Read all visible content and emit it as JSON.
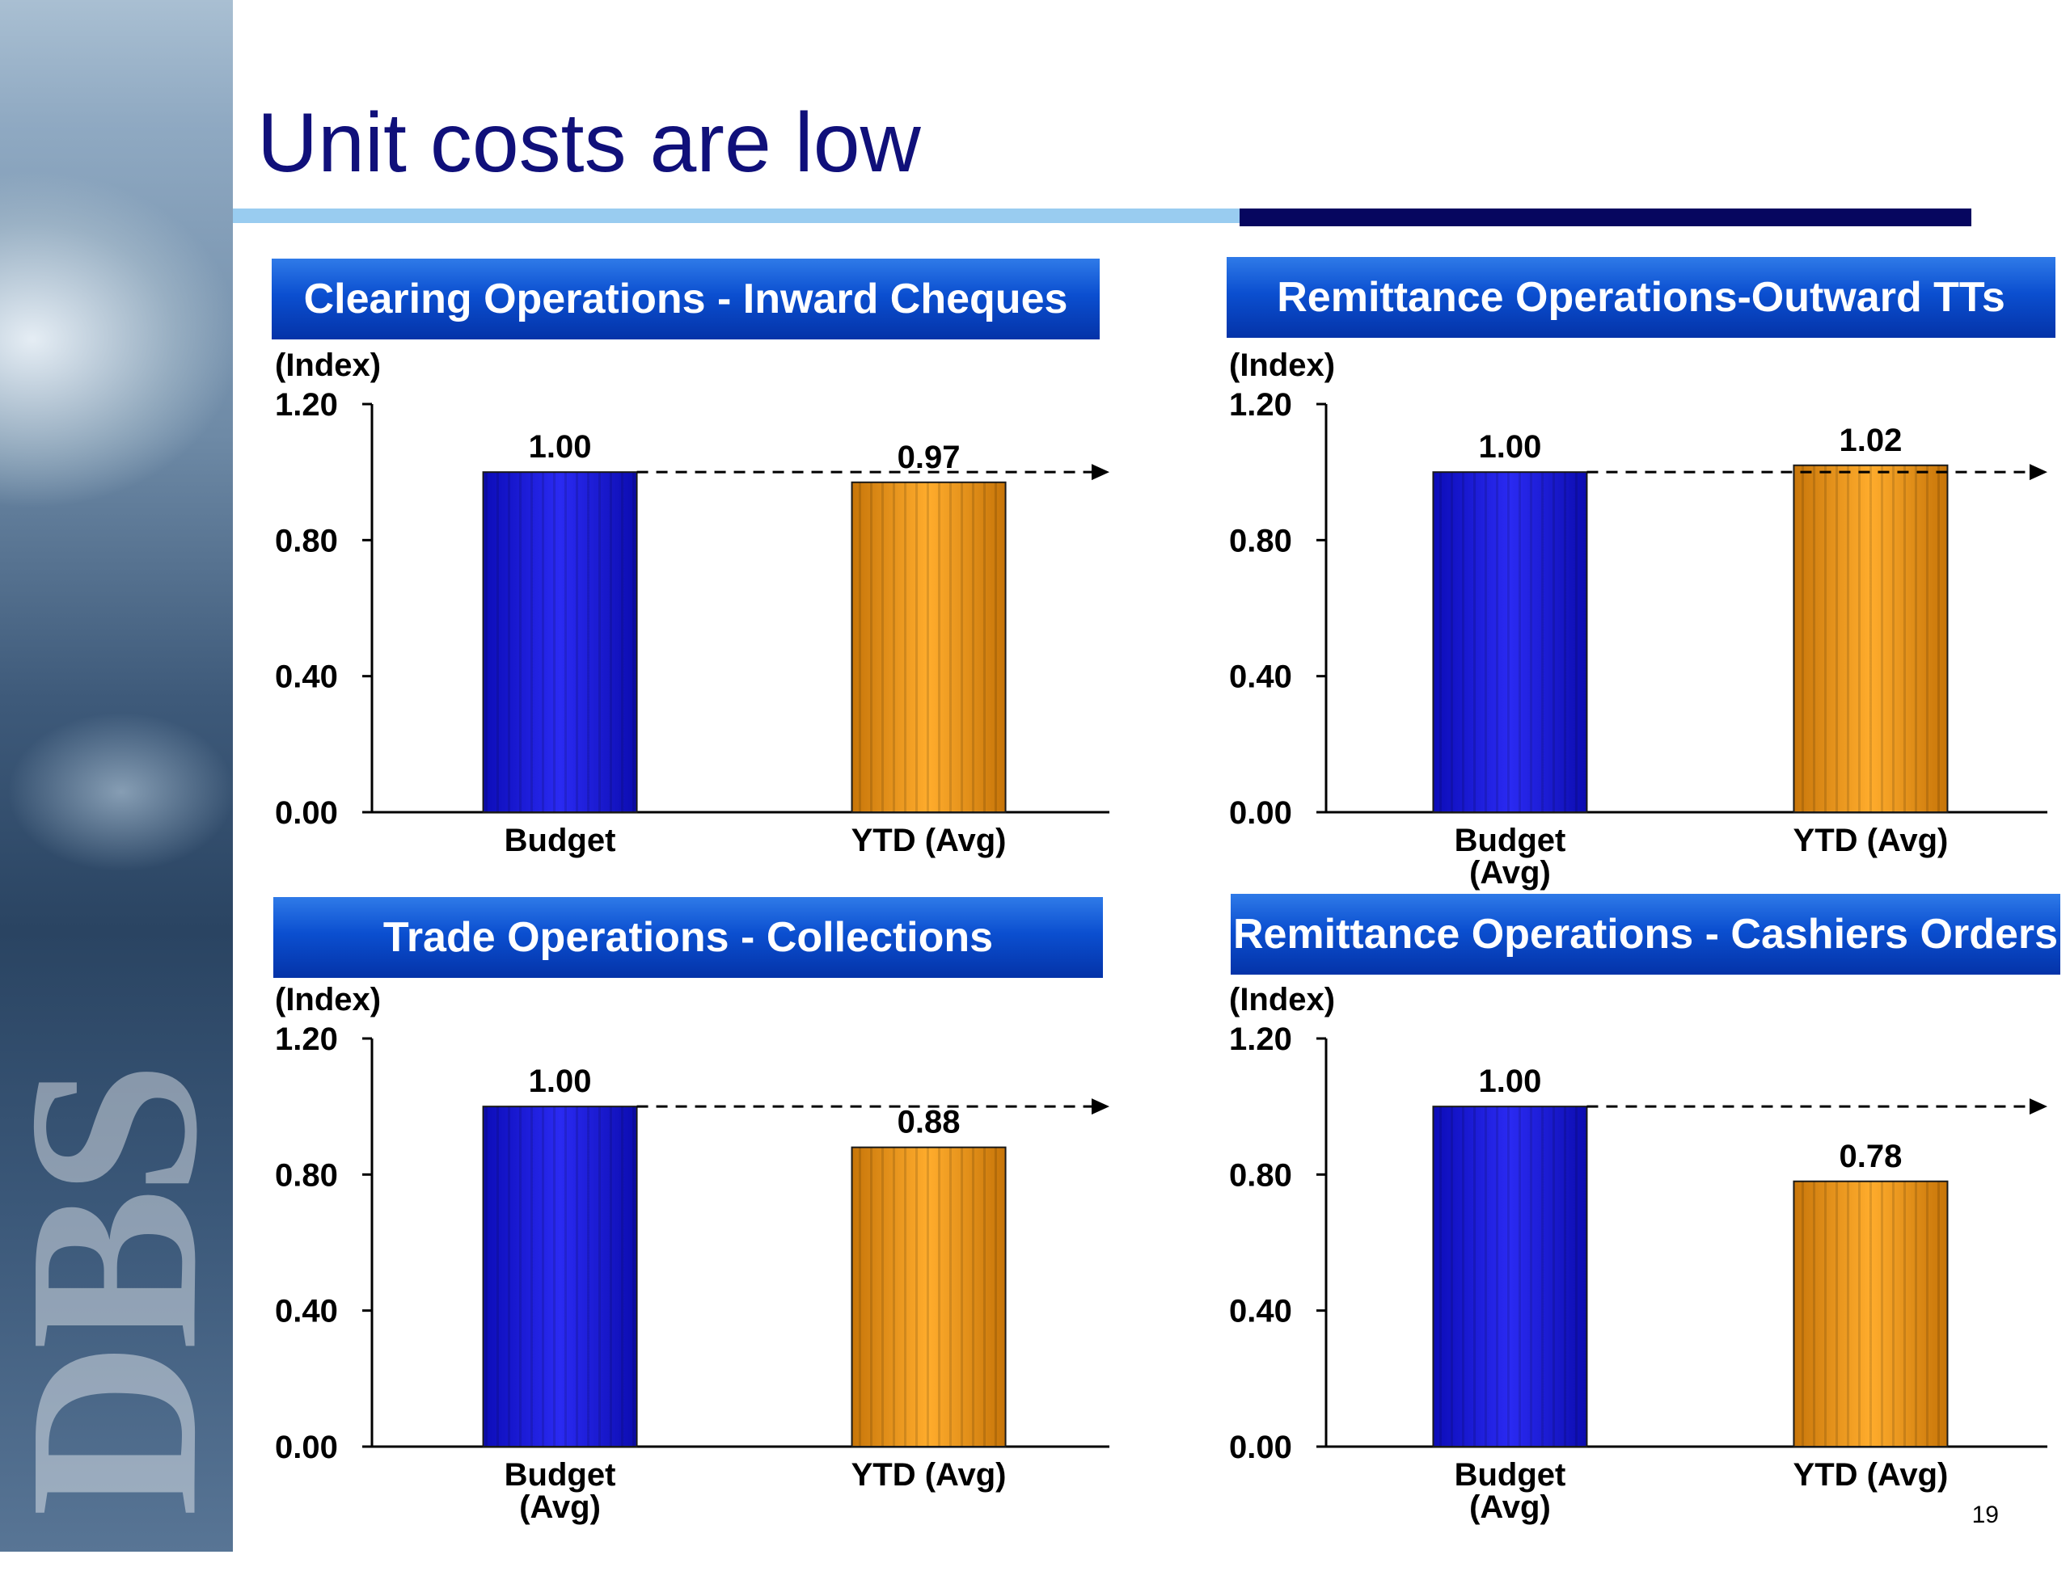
{
  "title": "Unit costs are low",
  "page_number": "19",
  "logo_text": "DBS",
  "colors": {
    "title": "#10107a",
    "budget_bar": "#1a1ae0",
    "ytd_bar": "#f29a1a",
    "header_bg": "#0b4fd0"
  },
  "chart_data": [
    {
      "type": "bar",
      "title": "Clearing Operations - Inward Cheques",
      "ylabel": "(Index)",
      "ylim": [
        0,
        1.2
      ],
      "yticks": [
        "0.00",
        "0.40",
        "0.80",
        "1.20"
      ],
      "categories": [
        "Budget",
        "YTD (Avg)"
      ],
      "values": [
        1.0,
        0.97
      ],
      "value_labels": [
        "1.00",
        "0.97"
      ],
      "reference_line": 1.0
    },
    {
      "type": "bar",
      "title": "Remittance Operations-Outward TTs",
      "ylabel": "(Index)",
      "ylim": [
        0,
        1.2
      ],
      "yticks": [
        "0.00",
        "0.40",
        "0.80",
        "1.20"
      ],
      "categories": [
        "Budget (Avg)",
        "YTD (Avg)"
      ],
      "values": [
        1.0,
        1.02
      ],
      "value_labels": [
        "1.00",
        "1.02"
      ],
      "reference_line": 1.0
    },
    {
      "type": "bar",
      "title": "Trade Operations - Collections",
      "ylabel": "(Index)",
      "ylim": [
        0,
        1.2
      ],
      "yticks": [
        "0.00",
        "0.40",
        "0.80",
        "1.20"
      ],
      "categories": [
        "Budget (Avg)",
        "YTD (Avg)"
      ],
      "values": [
        1.0,
        0.88
      ],
      "value_labels": [
        "1.00",
        "0.88"
      ],
      "reference_line": 1.0
    },
    {
      "type": "bar",
      "title": "Remittance Operations - Cashiers Orders",
      "ylabel": "(Index)",
      "ylim": [
        0,
        1.2
      ],
      "yticks": [
        "0.00",
        "0.40",
        "0.80",
        "1.20"
      ],
      "categories": [
        "Budget (Avg)",
        "YTD (Avg)"
      ],
      "values": [
        1.0,
        0.78
      ],
      "value_labels": [
        "1.00",
        "0.78"
      ],
      "reference_line": 1.0
    }
  ]
}
